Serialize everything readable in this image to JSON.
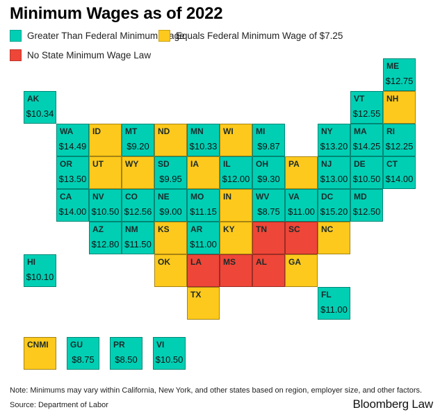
{
  "title": "Minimum Wages as of 2022",
  "colors": {
    "greater": "#00cfb4",
    "equals": "#fdc91c",
    "none": "#ee4638"
  },
  "legend": [
    {
      "key": "greater",
      "label": "Greater Than Federal Minimum Wage"
    },
    {
      "key": "equals",
      "label": "Equals Federal Minimum Wage of $7.25"
    },
    {
      "key": "none",
      "label": "No State Minimum Wage Law"
    }
  ],
  "states": [
    {
      "abbr": "ME",
      "wage": "$12.75",
      "status": "greater",
      "col": 11,
      "row": 0
    },
    {
      "abbr": "AK",
      "wage": "$10.34",
      "status": "greater",
      "col": 0,
      "row": 1
    },
    {
      "abbr": "VT",
      "wage": "$12.55",
      "status": "greater",
      "col": 10,
      "row": 1
    },
    {
      "abbr": "NH",
      "wage": "",
      "status": "equals",
      "col": 11,
      "row": 1
    },
    {
      "abbr": "WA",
      "wage": "$14.49",
      "status": "greater",
      "col": 1,
      "row": 2
    },
    {
      "abbr": "ID",
      "wage": "",
      "status": "equals",
      "col": 2,
      "row": 2
    },
    {
      "abbr": "MT",
      "wage": "$9.20",
      "status": "greater",
      "col": 3,
      "row": 2
    },
    {
      "abbr": "ND",
      "wage": "",
      "status": "equals",
      "col": 4,
      "row": 2
    },
    {
      "abbr": "MN",
      "wage": "$10.33",
      "status": "greater",
      "col": 5,
      "row": 2
    },
    {
      "abbr": "WI",
      "wage": "",
      "status": "equals",
      "col": 6,
      "row": 2
    },
    {
      "abbr": "MI",
      "wage": "$9.87",
      "status": "greater",
      "col": 7,
      "row": 2
    },
    {
      "abbr": "NY",
      "wage": "$13.20",
      "status": "greater",
      "col": 9,
      "row": 2
    },
    {
      "abbr": "MA",
      "wage": "$14.25",
      "status": "greater",
      "col": 10,
      "row": 2
    },
    {
      "abbr": "RI",
      "wage": "$12.25",
      "status": "greater",
      "col": 11,
      "row": 2
    },
    {
      "abbr": "OR",
      "wage": "$13.50",
      "status": "greater",
      "col": 1,
      "row": 3
    },
    {
      "abbr": "UT",
      "wage": "",
      "status": "equals",
      "col": 2,
      "row": 3
    },
    {
      "abbr": "WY",
      "wage": "",
      "status": "equals",
      "col": 3,
      "row": 3
    },
    {
      "abbr": "SD",
      "wage": "$9.95",
      "status": "greater",
      "col": 4,
      "row": 3
    },
    {
      "abbr": "IA",
      "wage": "",
      "status": "equals",
      "col": 5,
      "row": 3
    },
    {
      "abbr": "IL",
      "wage": "$12.00",
      "status": "greater",
      "col": 6,
      "row": 3
    },
    {
      "abbr": "OH",
      "wage": "$9.30",
      "status": "greater",
      "col": 7,
      "row": 3
    },
    {
      "abbr": "PA",
      "wage": "",
      "status": "equals",
      "col": 8,
      "row": 3
    },
    {
      "abbr": "NJ",
      "wage": "$13.00",
      "status": "greater",
      "col": 9,
      "row": 3
    },
    {
      "abbr": "DE",
      "wage": "$10.50",
      "status": "greater",
      "col": 10,
      "row": 3
    },
    {
      "abbr": "CT",
      "wage": "$14.00",
      "status": "greater",
      "col": 11,
      "row": 3
    },
    {
      "abbr": "CA",
      "wage": "$14.00",
      "status": "greater",
      "col": 1,
      "row": 4
    },
    {
      "abbr": "NV",
      "wage": "$10.50",
      "status": "greater",
      "col": 2,
      "row": 4
    },
    {
      "abbr": "CO",
      "wage": "$12.56",
      "status": "greater",
      "col": 3,
      "row": 4
    },
    {
      "abbr": "NE",
      "wage": "$9.00",
      "status": "greater",
      "col": 4,
      "row": 4
    },
    {
      "abbr": "MO",
      "wage": "$11.15",
      "status": "greater",
      "col": 5,
      "row": 4
    },
    {
      "abbr": "IN",
      "wage": "",
      "status": "equals",
      "col": 6,
      "row": 4
    },
    {
      "abbr": "WV",
      "wage": "$8.75",
      "status": "greater",
      "col": 7,
      "row": 4
    },
    {
      "abbr": "VA",
      "wage": "$11.00",
      "status": "greater",
      "col": 8,
      "row": 4
    },
    {
      "abbr": "DC",
      "wage": "$15.20",
      "status": "greater",
      "col": 9,
      "row": 4
    },
    {
      "abbr": "MD",
      "wage": "$12.50",
      "status": "greater",
      "col": 10,
      "row": 4
    },
    {
      "abbr": "AZ",
      "wage": "$12.80",
      "status": "greater",
      "col": 2,
      "row": 5
    },
    {
      "abbr": "NM",
      "wage": "$11.50",
      "status": "greater",
      "col": 3,
      "row": 5
    },
    {
      "abbr": "KS",
      "wage": "",
      "status": "equals",
      "col": 4,
      "row": 5
    },
    {
      "abbr": "AR",
      "wage": "$11.00",
      "status": "greater",
      "col": 5,
      "row": 5
    },
    {
      "abbr": "KY",
      "wage": "",
      "status": "equals",
      "col": 6,
      "row": 5
    },
    {
      "abbr": "TN",
      "wage": "",
      "status": "none",
      "col": 7,
      "row": 5
    },
    {
      "abbr": "SC",
      "wage": "",
      "status": "none",
      "col": 8,
      "row": 5
    },
    {
      "abbr": "NC",
      "wage": "",
      "status": "equals",
      "col": 9,
      "row": 5
    },
    {
      "abbr": "HI",
      "wage": "$10.10",
      "status": "greater",
      "col": 0,
      "row": 6
    },
    {
      "abbr": "OK",
      "wage": "",
      "status": "equals",
      "col": 4,
      "row": 6
    },
    {
      "abbr": "LA",
      "wage": "",
      "status": "none",
      "col": 5,
      "row": 6
    },
    {
      "abbr": "MS",
      "wage": "",
      "status": "none",
      "col": 6,
      "row": 6
    },
    {
      "abbr": "AL",
      "wage": "",
      "status": "none",
      "col": 7,
      "row": 6
    },
    {
      "abbr": "GA",
      "wage": "",
      "status": "equals",
      "col": 8,
      "row": 6
    },
    {
      "abbr": "TX",
      "wage": "",
      "status": "equals",
      "col": 5,
      "row": 7
    },
    {
      "abbr": "FL",
      "wage": "$11.00",
      "status": "greater",
      "col": 9,
      "row": 7
    }
  ],
  "territories": [
    {
      "abbr": "CNMI",
      "wage": "",
      "status": "equals"
    },
    {
      "abbr": "GU",
      "wage": "$8.75",
      "status": "greater"
    },
    {
      "abbr": "PR",
      "wage": "$8.50",
      "status": "greater"
    },
    {
      "abbr": "VI",
      "wage": "$10.50",
      "status": "greater"
    }
  ],
  "footer": {
    "note": "Note: Minimums may vary within California, New York, and other states based on region, employer size, and other factors.",
    "source": "Source: Department of Labor",
    "brand": "Bloomberg Law"
  }
}
